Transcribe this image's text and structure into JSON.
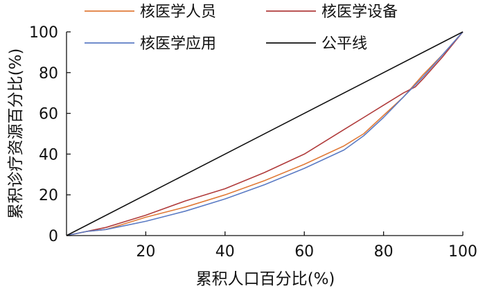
{
  "chart_data": {
    "type": "line",
    "xlabel": "累积人口百分比(%)",
    "ylabel": "累积诊疗资源百分比(%)",
    "xlim": [
      0,
      100
    ],
    "ylim": [
      0,
      100
    ],
    "xticks": [
      "20",
      "40",
      "60",
      "80",
      "100"
    ],
    "yticks": [
      "0",
      "20",
      "40",
      "60",
      "80",
      "100"
    ],
    "grid": false,
    "legend_position": "top",
    "series": [
      {
        "name": "核医学人员",
        "color": "#e07b39",
        "x": [
          0,
          5,
          10,
          15,
          20,
          30,
          40,
          50,
          60,
          70,
          75,
          80,
          85,
          90,
          95,
          100
        ],
        "y": [
          0,
          2,
          3,
          6,
          9,
          14,
          20,
          27,
          35,
          44,
          50,
          59,
          68,
          79,
          89,
          100
        ]
      },
      {
        "name": "核医学设备",
        "color": "#b03b3b",
        "x": [
          0,
          5,
          10,
          15,
          20,
          30,
          40,
          50,
          60,
          70,
          75,
          80,
          85,
          88,
          90,
          95,
          100
        ],
        "y": [
          0,
          2,
          4,
          7,
          10,
          17,
          23,
          31,
          40,
          52,
          58,
          64,
          70,
          73,
          77,
          88,
          100
        ]
      },
      {
        "name": "核医学应用",
        "color": "#5b7bc4",
        "x": [
          0,
          5,
          10,
          15,
          20,
          30,
          40,
          50,
          60,
          70,
          75,
          80,
          85,
          90,
          95,
          100
        ],
        "y": [
          0,
          2,
          3,
          5,
          7,
          12,
          18,
          25,
          33,
          42,
          49,
          58,
          68,
          78,
          89,
          100
        ]
      },
      {
        "name": "公平线",
        "color": "#111111",
        "x": [
          0,
          100
        ],
        "y": [
          0,
          100
        ]
      }
    ]
  }
}
